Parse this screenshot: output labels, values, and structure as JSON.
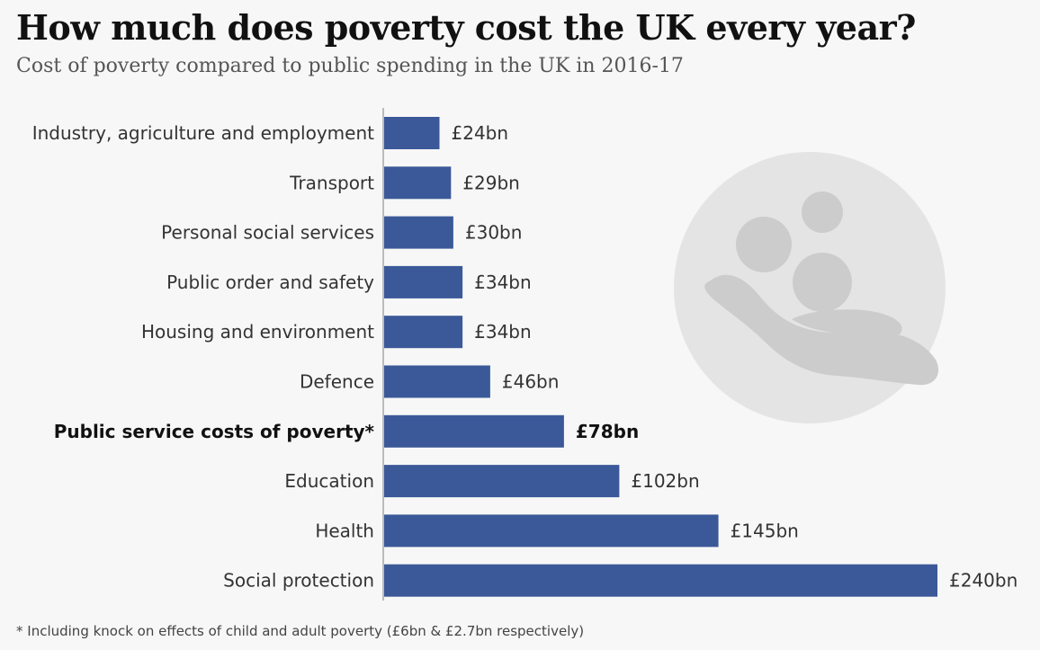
{
  "title": "How much does poverty cost the UK every year?",
  "subtitle": "Cost of poverty compared to public spending in the UK in 2016-17",
  "footnote": "* Including knock on effects of child and adult poverty (£6bn & £2.7bn respectively)",
  "colors": {
    "bar": "#3b5998",
    "background": "#f7f7f7",
    "icon_circle": "#e4e4e4",
    "icon_shape": "#cccccc"
  },
  "icon": "hand-holding-people-icon",
  "chart_data": {
    "type": "bar",
    "orientation": "horizontal",
    "title": "How much does poverty cost the UK every year?",
    "subtitle": "Cost of poverty compared to public spending in the UK in 2016-17",
    "categories": [
      "Industry, agriculture and employment",
      "Transport",
      "Personal social services",
      "Public order and safety",
      "Housing and environment",
      "Defence",
      "Public service costs of poverty*",
      "Education",
      "Health",
      "Social protection"
    ],
    "values": [
      24,
      29,
      30,
      34,
      34,
      46,
      78,
      102,
      145,
      240
    ],
    "value_labels": [
      "£24bn",
      "£29bn",
      "£30bn",
      "£34bn",
      "£34bn",
      "£46bn",
      "£78bn",
      "£102bn",
      "£145bn",
      "£240bn"
    ],
    "highlight": [
      "Public service costs of poverty*"
    ],
    "xlabel": "",
    "ylabel": "",
    "xlim": [
      0,
      240
    ],
    "grid": false,
    "legend": "none"
  }
}
